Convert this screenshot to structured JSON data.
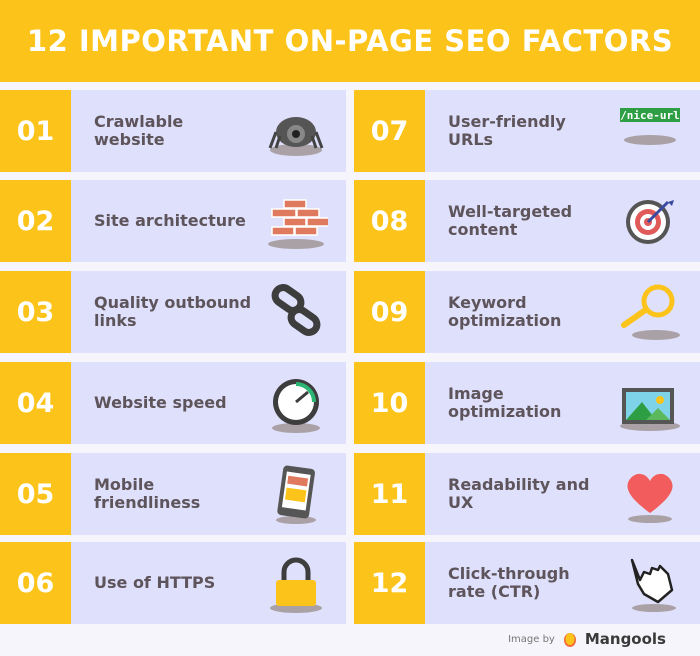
{
  "title": "12 IMPORTANT ON-PAGE SEO FACTORS",
  "factors": [
    {
      "num": "01",
      "label": "Crawlable website",
      "icon": "spider-icon"
    },
    {
      "num": "02",
      "label": "Site architecture",
      "icon": "bricks-icon"
    },
    {
      "num": "03",
      "label": "Quality outbound links",
      "icon": "chain-link-icon"
    },
    {
      "num": "04",
      "label": "Website speed",
      "icon": "speedometer-icon"
    },
    {
      "num": "05",
      "label": "Mobile friendliness",
      "icon": "smartphone-icon"
    },
    {
      "num": "06",
      "label": "Use of HTTPS",
      "icon": "padlock-icon"
    },
    {
      "num": "07",
      "label": "User-friendly URLs",
      "icon": "url-tag-icon",
      "icon_text": "/nice-url"
    },
    {
      "num": "08",
      "label": "Well-targeted content",
      "icon": "target-icon"
    },
    {
      "num": "09",
      "label": "Keyword optimization",
      "icon": "magnifier-icon"
    },
    {
      "num": "10",
      "label": "Image optimization",
      "icon": "image-icon"
    },
    {
      "num": "11",
      "label": "Readability and UX",
      "icon": "heart-icon"
    },
    {
      "num": "12",
      "label": "Click-through rate (CTR)",
      "icon": "pointer-hand-icon"
    }
  ],
  "footer": {
    "credit": "Image by",
    "brand": "Mangools"
  },
  "colors": {
    "accent": "#fcc41b",
    "card": "#dfe0fb",
    "text": "#5e545b",
    "background": "#f5f5fb"
  }
}
